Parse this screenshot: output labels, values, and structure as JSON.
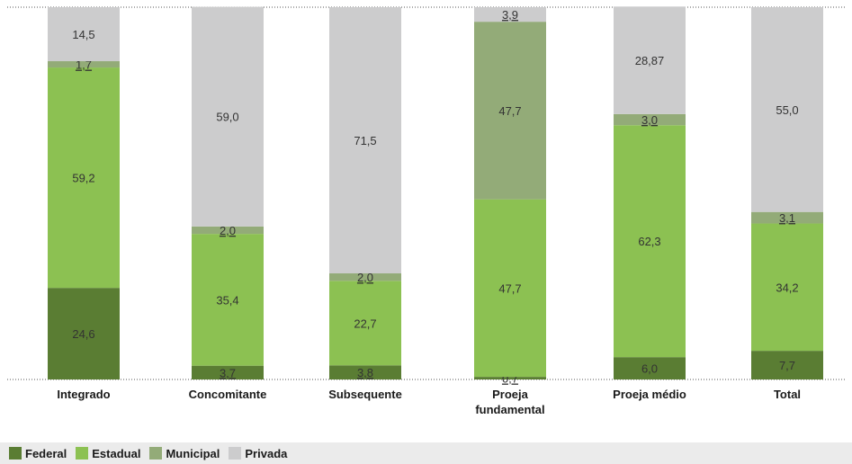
{
  "chart_data": {
    "type": "bar",
    "stacked": true,
    "title": "",
    "xlabel": "",
    "ylabel": "",
    "ylim": [
      0,
      100
    ],
    "grid": false,
    "legend_position": "bottom",
    "categories": [
      "Integrado",
      "Concomitante",
      "Subsequente",
      "Proeja fundamental",
      "Proeja médio",
      "Total"
    ],
    "category_lines": [
      [
        "Integrado"
      ],
      [
        "Concomitante"
      ],
      [
        "Subsequente"
      ],
      [
        "Proeja",
        "fundamental"
      ],
      [
        "Proeja médio"
      ],
      [
        "Total"
      ]
    ],
    "series": [
      {
        "name": "Federal",
        "color": "#5a7d33",
        "values": [
          24.6,
          3.7,
          3.8,
          0.7,
          6.0,
          7.7
        ],
        "labels": [
          "24,6",
          "3,7",
          "3,8",
          "0,7",
          "6,0",
          "7,7"
        ]
      },
      {
        "name": "Estadual",
        "color": "#8cc152",
        "values": [
          59.2,
          35.4,
          22.7,
          47.7,
          62.3,
          34.2
        ],
        "labels": [
          "59,2",
          "35,4",
          "22,7",
          "47,7",
          "62,3",
          "34,2"
        ]
      },
      {
        "name": "Municipal",
        "color": "#93ab78",
        "values": [
          1.7,
          2.0,
          2.0,
          47.7,
          3.0,
          3.1
        ],
        "labels": [
          "1,7",
          "2,0",
          "2,0",
          "47,7",
          "3,0",
          "3,1"
        ]
      },
      {
        "name": "Privada",
        "color": "#cccccd",
        "values": [
          14.5,
          59.0,
          71.5,
          3.9,
          28.87,
          55.0
        ],
        "labels": [
          "14,5",
          "59,0",
          "71,5",
          "3,9",
          "28,87",
          "55,0"
        ]
      }
    ]
  }
}
